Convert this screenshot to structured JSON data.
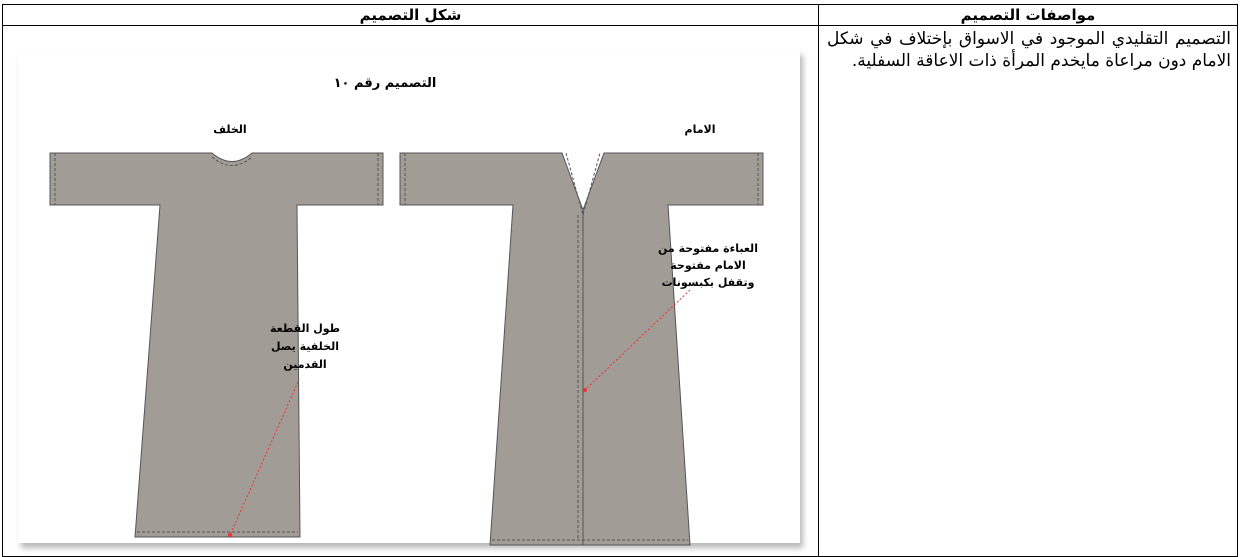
{
  "table": {
    "headers": [
      "مواصفات التصميم",
      "شكل التصميم"
    ],
    "rows": [
      [
        "التصميم التقليدي الموجود في الاسواق بإختلاف في شكل الامام دون مراعاة مايخدم المرأة ذات الاعاقة السفلية."
      ]
    ]
  },
  "figure": {
    "title": "التصميم رقم ١٠",
    "back_label": "الخلف",
    "front_label": "الامام",
    "front_note": [
      "العباءة مفتوحة من",
      "الامام مفتوحة",
      "وتقفل بكبسونات"
    ],
    "back_note": [
      "طول القطعة",
      "الخلفية يصل",
      "القدمين"
    ]
  }
}
